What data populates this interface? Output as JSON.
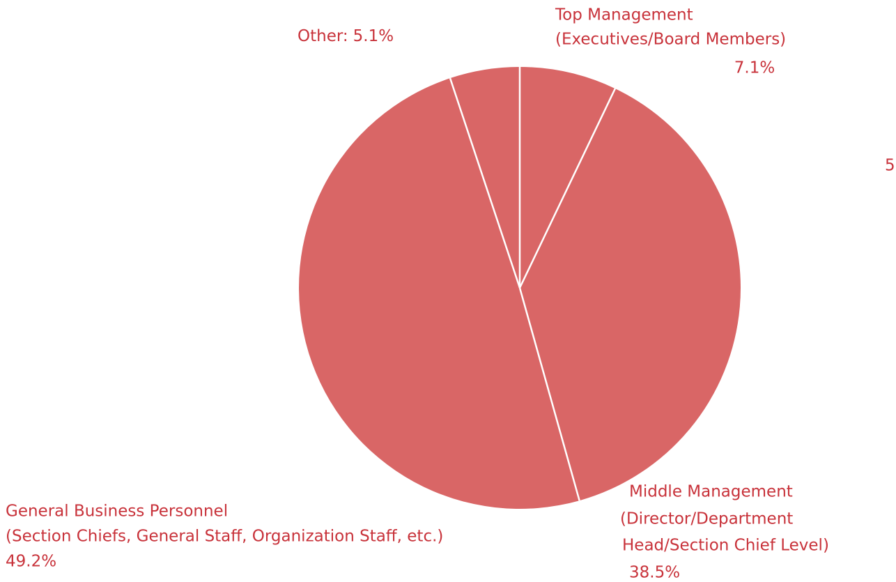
{
  "chart_data": {
    "type": "pie",
    "categories": [
      [
        "Top Management",
        "(Executives/Board Members)"
      ],
      [
        "Middle Management",
        "(Director/Department",
        "Head/Section Chief Level)"
      ],
      [
        "General Business Personnel",
        "(Section Chiefs, General Staff, Organization Staff, etc.)"
      ],
      [
        "Other:"
      ]
    ],
    "values": [
      7.1,
      38.5,
      49.2,
      5.1
    ],
    "value_labels": [
      "7.1%",
      "38.5%",
      "49.2%",
      "5.1%"
    ],
    "color": "#d96666",
    "annotations": [
      "5"
    ]
  }
}
